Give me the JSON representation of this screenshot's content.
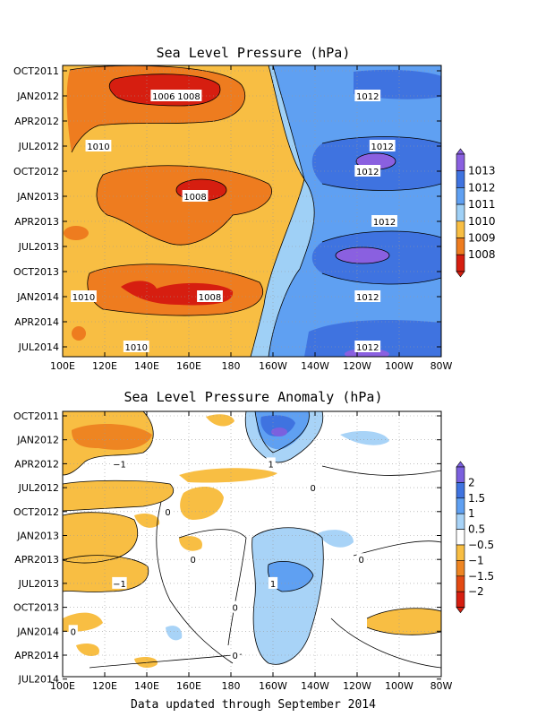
{
  "footer": "Data updated through September 2014",
  "chart_data": [
    {
      "type": "heatmap",
      "title": "Sea Level Pressure (hPa)",
      "x_ticks": [
        "100E",
        "120E",
        "140E",
        "160E",
        "180",
        "160W",
        "140W",
        "120W",
        "100W",
        "80W"
      ],
      "y_ticks": [
        "OCT2011",
        "JAN2012",
        "APR2012",
        "JUL2012",
        "OCT2012",
        "JAN2013",
        "APR2013",
        "JUL2013",
        "OCT2013",
        "JAN2014",
        "APR2014",
        "JUL2014"
      ],
      "colorbar": {
        "labels": [
          "1013",
          "1012",
          "1011",
          "1010",
          "1009",
          "1008"
        ],
        "colors": [
          "#8a60e0",
          "#3f73e0",
          "#5fa0f2",
          "#9fd0f6",
          "#f8be43",
          "#ee7c1f",
          "#d61e10"
        ]
      },
      "contour_labels": [
        {
          "text": "1008",
          "x": 160,
          "y": "JAN2012"
        },
        {
          "text": "1006",
          "x": 148,
          "y": "JAN2012"
        },
        {
          "text": "1012",
          "x": -115,
          "y": "JAN2012"
        },
        {
          "text": "1010",
          "x": 117,
          "y": "JUL2012"
        },
        {
          "text": "1012",
          "x": -108,
          "y": "JUL2012"
        },
        {
          "text": "1012",
          "x": -115,
          "y": "OCT2012"
        },
        {
          "text": "1008",
          "x": 163,
          "y": "JAN2013"
        },
        {
          "text": "1012",
          "x": -107,
          "y": "APR2013"
        },
        {
          "text": "1010",
          "x": 110,
          "y": "JAN2014"
        },
        {
          "text": "1012",
          "x": -115,
          "y": "JAN2014"
        },
        {
          "text": "1008",
          "x": 170,
          "y": "JAN2014"
        },
        {
          "text": "1012",
          "x": -115,
          "y": "JUL2014"
        },
        {
          "text": "1010",
          "x": 135,
          "y": "JUL2014"
        }
      ]
    },
    {
      "type": "heatmap",
      "title": "Sea Level Pressure Anomaly (hPa)",
      "x_ticks": [
        "100E",
        "120E",
        "140E",
        "160E",
        "180",
        "160W",
        "140W",
        "120W",
        "100W",
        "80W"
      ],
      "y_ticks": [
        "OCT2011",
        "JAN2012",
        "APR2012",
        "JUL2012",
        "OCT2012",
        "JAN2013",
        "APR2013",
        "JUL2013",
        "OCT2013",
        "JAN2014",
        "APR2014",
        "JUL2014"
      ],
      "colorbar": {
        "labels": [
          "2",
          "1.5",
          "1",
          "0.5",
          "−0.5",
          "−1",
          "−1.5",
          "−2"
        ],
        "colors": [
          "#7b60de",
          "#3f73e0",
          "#5fa0f2",
          "#a8d3f7",
          "#ffffff",
          "#f8be43",
          "#ee8522",
          "#e34a13",
          "#d61e10"
        ]
      },
      "contour_labels": [
        {
          "text": "−1",
          "x": 127,
          "y": "APR2012"
        },
        {
          "text": "1",
          "x": -161,
          "y": "APR2012"
        },
        {
          "text": "0",
          "x": -141,
          "y": "JUL2012"
        },
        {
          "text": "0",
          "x": 150,
          "y": "OCT2012"
        },
        {
          "text": "0",
          "x": 162,
          "y": "APR2013"
        },
        {
          "text": "0",
          "x": -118,
          "y": "APR2013"
        },
        {
          "text": "−1",
          "x": 127,
          "y": "JUL2013"
        },
        {
          "text": "1",
          "x": -160,
          "y": "JUL2013"
        },
        {
          "text": "0",
          "x": 105,
          "y": "JAN2014"
        },
        {
          "text": "0",
          "x": -178,
          "y": "APR2014"
        },
        {
          "text": "0",
          "x": -178,
          "y": "OCT2013"
        }
      ]
    }
  ]
}
